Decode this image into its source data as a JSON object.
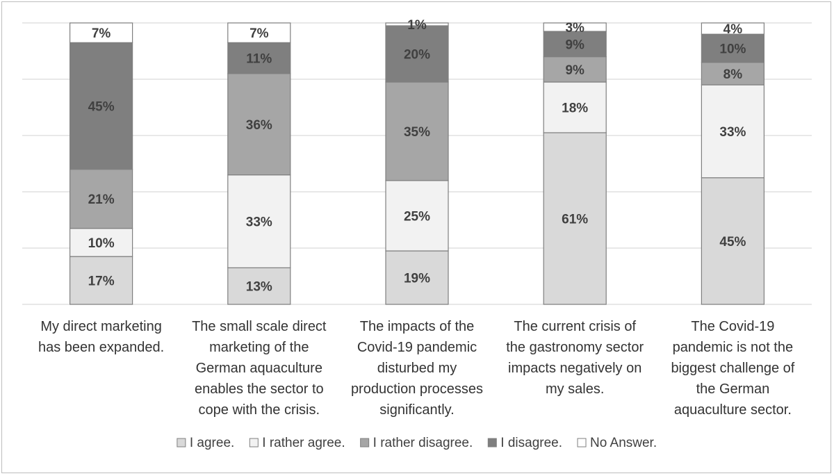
{
  "chart_data": {
    "type": "bar",
    "stacked": true,
    "percent_scale": true,
    "grid": true,
    "legend_position": "bottom",
    "ylim": [
      0,
      100
    ],
    "categories": [
      [
        "My direct marketing",
        "has been expanded."
      ],
      [
        "The small scale direct",
        "marketing of the",
        "German aquaculture",
        "enables the sector to",
        "cope with the crisis."
      ],
      [
        "The impacts of the",
        "Covid-19 pandemic",
        "disturbed my",
        "production processes",
        "significantly."
      ],
      [
        "The current crisis of",
        "the gastronomy sector",
        "impacts negatively on",
        "my sales."
      ],
      [
        "The Covid-19",
        "pandemic is not the",
        "biggest challenge of",
        "the German",
        "aquaculture sector."
      ]
    ],
    "series": [
      {
        "name": "I agree.",
        "color": "#d9d9d9",
        "values": [
          17,
          13,
          19,
          61,
          45
        ]
      },
      {
        "name": "I rather agree.",
        "color": "#f2f2f2",
        "values": [
          10,
          33,
          25,
          18,
          33
        ]
      },
      {
        "name": "I rather disagree.",
        "color": "#a6a6a6",
        "values": [
          21,
          36,
          35,
          9,
          8
        ]
      },
      {
        "name": "I disagree.",
        "color": "#7f7f7f",
        "values": [
          45,
          11,
          20,
          9,
          10
        ]
      },
      {
        "name": "No Answer.",
        "color": "#ffffff",
        "values": [
          7,
          7,
          1,
          3,
          4
        ]
      }
    ],
    "value_suffix": "%"
  }
}
